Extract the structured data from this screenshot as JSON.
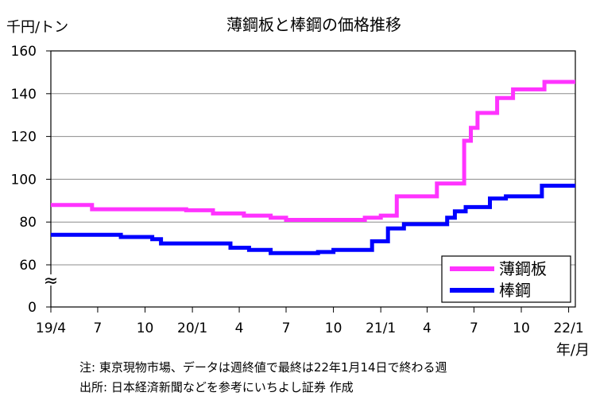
{
  "chart_data": {
    "type": "line",
    "title": "薄鋼板と棒鋼の価格推移",
    "ylabel": "千円/トン",
    "xlabel": "年/月",
    "ylim": [
      0,
      160
    ],
    "y_ticks": [
      {
        "value": 0,
        "label": "0"
      },
      {
        "value": 60,
        "label": "60"
      },
      {
        "value": 80,
        "label": "80"
      },
      {
        "value": 100,
        "label": "100"
      },
      {
        "value": 120,
        "label": "120"
      },
      {
        "value": 140,
        "label": "140"
      },
      {
        "value": 160,
        "label": "160"
      }
    ],
    "axis_break": "≈",
    "x_ticks": [
      {
        "date": "2019-04",
        "label": "19/4"
      },
      {
        "date": "2019-07",
        "label": "7"
      },
      {
        "date": "2019-10",
        "label": "10"
      },
      {
        "date": "2020-01",
        "label": "20/1"
      },
      {
        "date": "2020-04",
        "label": "4"
      },
      {
        "date": "2020-07",
        "label": "7"
      },
      {
        "date": "2020-10",
        "label": "10"
      },
      {
        "date": "2021-01",
        "label": "21/1"
      },
      {
        "date": "2021-04",
        "label": "4"
      },
      {
        "date": "2021-07",
        "label": "7"
      },
      {
        "date": "2021-10",
        "label": "10"
      },
      {
        "date": "2022-01",
        "label": "22/1"
      }
    ],
    "x_range": [
      "2019-04",
      "2022-01-14"
    ],
    "grid": "horizontal",
    "legend_position": "bottom-right",
    "series": [
      {
        "name": "薄鋼板",
        "color": "#ff33ff",
        "points": [
          [
            "2019-04-01",
            88
          ],
          [
            "2019-06-20",
            86
          ],
          [
            "2019-12-20",
            85.5
          ],
          [
            "2020-02-10",
            84
          ],
          [
            "2020-04-10",
            83
          ],
          [
            "2020-06-01",
            82
          ],
          [
            "2020-07-01",
            81
          ],
          [
            "2020-12-01",
            82
          ],
          [
            "2021-01-01",
            83
          ],
          [
            "2021-02-01",
            92
          ],
          [
            "2021-04-20",
            98
          ],
          [
            "2021-06-12",
            118
          ],
          [
            "2021-06-25",
            124
          ],
          [
            "2021-07-08",
            131
          ],
          [
            "2021-08-15",
            138
          ],
          [
            "2021-09-15",
            142
          ],
          [
            "2021-11-15",
            145.5
          ],
          [
            "2022-01-14",
            145.5
          ]
        ]
      },
      {
        "name": "棒鋼",
        "color": "#0000ff",
        "points": [
          [
            "2019-04-01",
            74
          ],
          [
            "2019-08-15",
            73
          ],
          [
            "2019-10-15",
            72
          ],
          [
            "2019-11-01",
            70
          ],
          [
            "2020-03-15",
            68
          ],
          [
            "2020-04-20",
            67
          ],
          [
            "2020-06-01",
            65.5
          ],
          [
            "2020-09-01",
            66
          ],
          [
            "2020-10-01",
            67
          ],
          [
            "2020-12-15",
            71
          ],
          [
            "2021-01-15",
            77
          ],
          [
            "2021-02-15",
            79
          ],
          [
            "2021-05-10",
            82
          ],
          [
            "2021-05-25",
            85
          ],
          [
            "2021-06-15",
            87
          ],
          [
            "2021-08-01",
            91
          ],
          [
            "2021-09-01",
            92
          ],
          [
            "2021-11-10",
            97
          ],
          [
            "2022-01-14",
            97
          ]
        ]
      }
    ]
  },
  "notes": {
    "line1": "注: 東京現物市場、データは週終値で最終は22年1月14日で終わる週",
    "line2": "出所: 日本経済新聞などを参考にいちよし証券 作成"
  }
}
